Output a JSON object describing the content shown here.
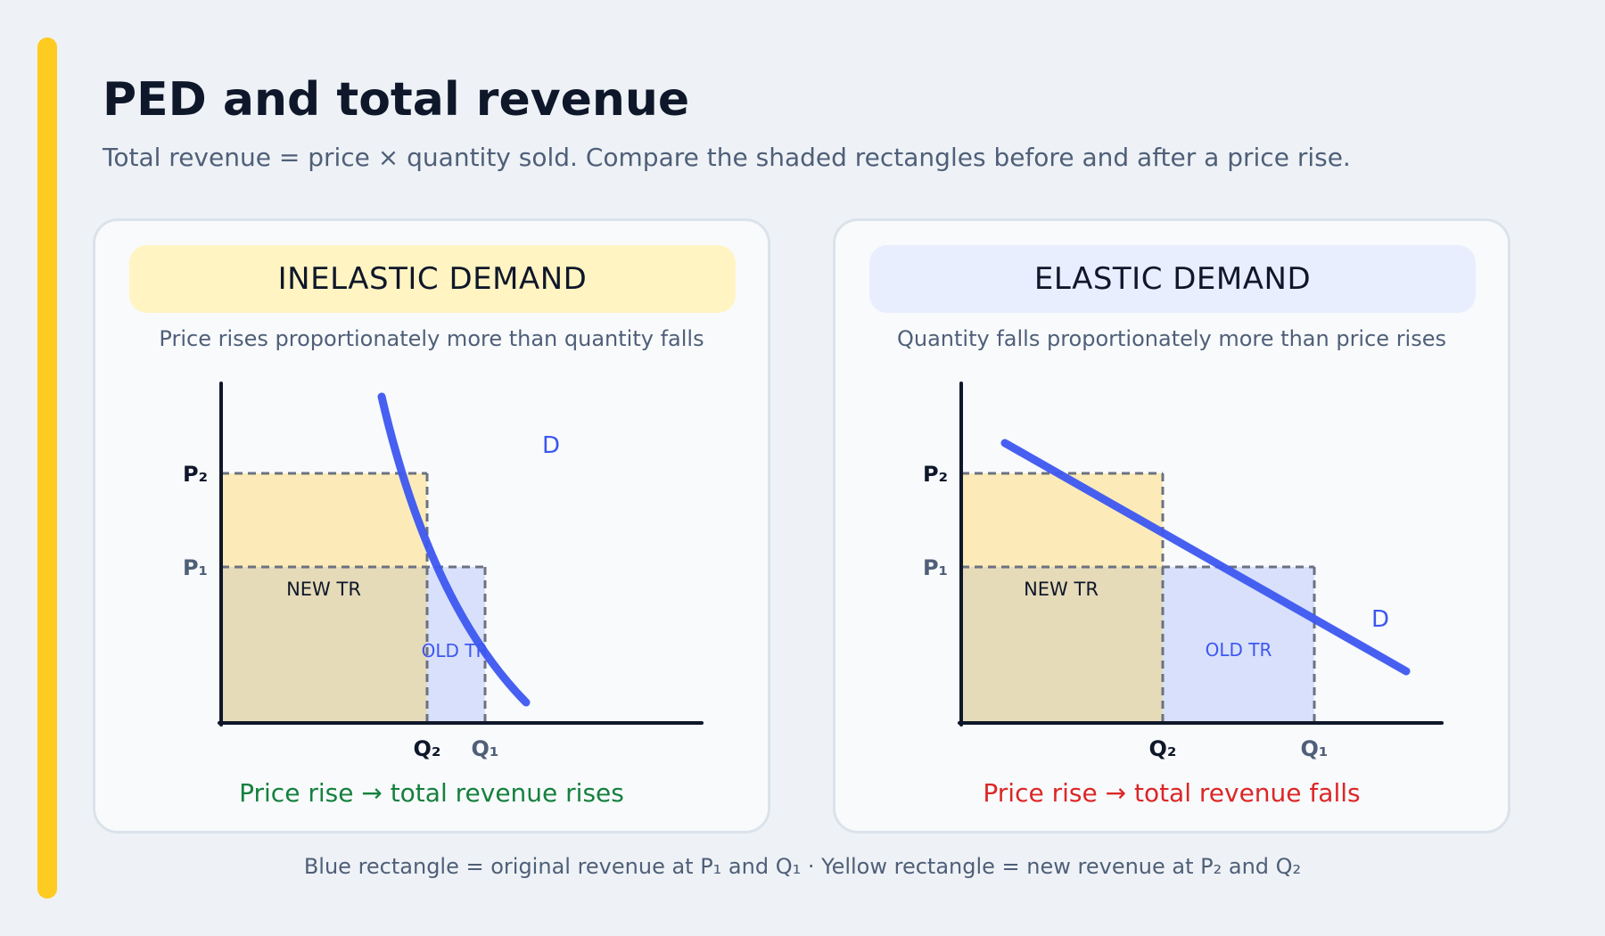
{
  "title": "PED and total revenue",
  "subtitle": "Total revenue = price × quantity sold. Compare the shaded rectangles before and after a price rise.",
  "footer": "Blue rectangle = original revenue at P₁ and Q₁ · Yellow rectangle = new revenue at P₂ and Q₂",
  "colors": {
    "accent": "#fecb20",
    "demand_curve": "#3d57f0",
    "old_tr_fill": "#d8e0fb",
    "new_tr_fill": "#fcebb8",
    "overlap_fill": "#e5dbb8",
    "rise_text": "#15803d",
    "fall_text": "#dc2626"
  },
  "panels": {
    "inelastic": {
      "header": "INELASTIC DEMAND",
      "description": "Price rises proportionately more than quantity falls",
      "p2_label": "P₂",
      "p1_label": "P₁",
      "q2_label": "Q₂",
      "q1_label": "Q₁",
      "new_tr_label": "NEW TR",
      "old_tr_label": "OLD TR",
      "demand_label": "D",
      "conclusion": "Price rise → total revenue rises"
    },
    "elastic": {
      "header": "ELASTIC DEMAND",
      "description": "Quantity falls proportionately more than price rises",
      "p2_label": "P₂",
      "p1_label": "P₁",
      "q2_label": "Q₂",
      "q1_label": "Q₁",
      "new_tr_label": "NEW TR",
      "old_tr_label": "OLD TR",
      "demand_label": "D",
      "conclusion": "Price rise → total revenue falls"
    }
  }
}
